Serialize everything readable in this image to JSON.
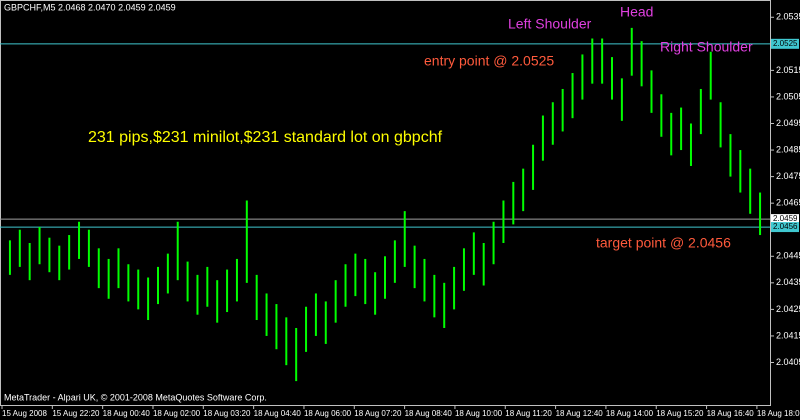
{
  "chart_data": {
    "type": "hilo",
    "header": "GBPCHF,M5  2.0468 2.0470 2.0459 2.0459",
    "footer": "MetaTrader - Alpari UK, © 2001-2008 MetaQuotes Software Corp.",
    "color": "#00ff00",
    "high": [
      2.0451,
      2.0455,
      2.045,
      2.0456,
      2.0452,
      2.0449,
      2.0453,
      2.0458,
      2.0455,
      2.0448,
      2.0444,
      2.0448,
      2.0442,
      2.044,
      2.0437,
      2.0441,
      2.0446,
      2.0458,
      2.0443,
      2.0438,
      2.0441,
      2.0436,
      2.044,
      2.0444,
      2.0466,
      2.0438,
      2.0431,
      2.0427,
      2.0422,
      2.0418,
      2.0426,
      2.0431,
      2.0428,
      2.0436,
      2.0442,
      2.0446,
      2.0444,
      2.0439,
      2.0445,
      2.0451,
      2.0462,
      2.0449,
      2.0444,
      2.0438,
      2.0435,
      2.0441,
      2.0448,
      2.0454,
      2.045,
      2.0458,
      2.0466,
      2.0473,
      2.0478,
      2.0487,
      2.0498,
      2.0503,
      2.0508,
      2.0514,
      2.0521,
      2.0527,
      2.0527,
      2.052,
      2.0512,
      2.0531,
      2.0526,
      2.0515,
      2.0506,
      2.0499,
      2.0501,
      2.0495,
      2.0508,
      2.0522,
      2.0503,
      2.0491,
      2.0485,
      2.0478,
      2.0469
    ],
    "low": [
      2.0438,
      2.0441,
      2.0436,
      2.0442,
      2.0439,
      2.0436,
      2.044,
      2.0444,
      2.0441,
      2.0433,
      2.0429,
      2.0433,
      2.0428,
      2.0425,
      2.0421,
      2.0427,
      2.0431,
      2.0436,
      2.0428,
      2.0423,
      2.0426,
      2.042,
      2.0424,
      2.0428,
      2.0435,
      2.0421,
      2.0415,
      2.041,
      2.0404,
      2.0398,
      2.0409,
      2.0415,
      2.0412,
      2.042,
      2.0426,
      2.043,
      2.0427,
      2.0423,
      2.0429,
      2.0435,
      2.0441,
      2.0433,
      2.0428,
      2.0422,
      2.0418,
      2.0425,
      2.0432,
      2.0438,
      2.0434,
      2.0442,
      2.045,
      2.0457,
      2.0462,
      2.047,
      2.0481,
      2.0487,
      2.0492,
      2.0497,
      2.0504,
      2.051,
      2.051,
      2.0504,
      2.0496,
      2.0513,
      2.0509,
      2.0499,
      2.049,
      2.0483,
      2.0485,
      2.0479,
      2.0491,
      2.0504,
      2.0486,
      2.0475,
      2.0469,
      2.0461,
      2.0453
    ],
    "ylim": [
      2.0389,
      2.05415
    ],
    "yticks": [
      2.0535,
      2.0515,
      2.0505,
      2.0495,
      2.0485,
      2.0475,
      2.0465,
      2.0445,
      2.0435,
      2.0425,
      2.0415,
      2.0405
    ],
    "xtick_labels": [
      "15 Aug 2008",
      "15 Aug 22:20",
      "18 Aug 00:40",
      "18 Aug 02:00",
      "18 Aug 03:20",
      "18 Aug 04:40",
      "18 Aug 06:00",
      "18 Aug 07:20",
      "18 Aug 08:40",
      "18 Aug 10:00",
      "18 Aug 11:20",
      "18 Aug 12:40",
      "18 Aug 14:00",
      "18 Aug 15:20",
      "18 Aug 16:40",
      "18 Aug 18:00"
    ],
    "levels": [
      {
        "value": 2.0525,
        "color": "#40c8d0"
      },
      {
        "value": 2.0459,
        "color": "#a0a0a0"
      },
      {
        "value": 2.0456,
        "color": "#40c8d0"
      }
    ],
    "annotations": [
      {
        "text": "Left Shoulder",
        "color": "#e040e0"
      },
      {
        "text": "Head",
        "color": "#e040e0"
      },
      {
        "text": "Right Shoulder",
        "color": "#e040e0"
      },
      {
        "text": "entry point @ 2.0525",
        "color": "#ff5a3c"
      },
      {
        "text": "target point @ 2.0456",
        "color": "#ff5a3c"
      },
      {
        "text": "231 pips,$231 minilot,$231 standard lot on gbpchf",
        "color": "#ffff00"
      }
    ]
  }
}
